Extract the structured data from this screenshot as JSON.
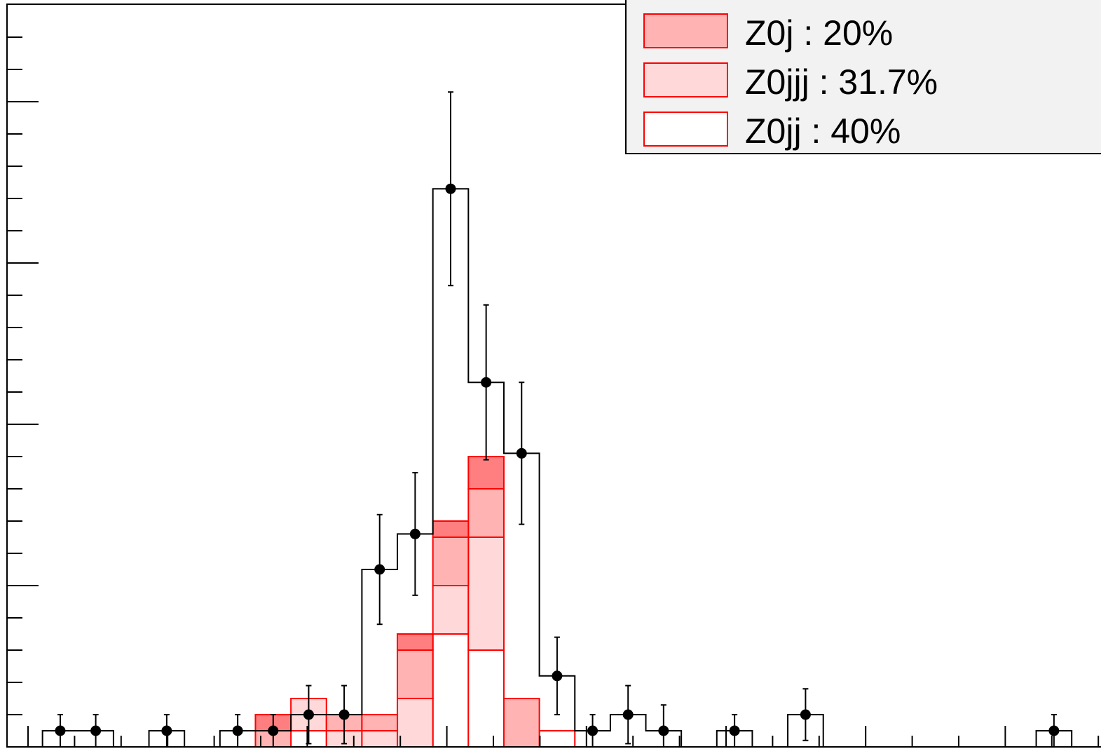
{
  "chart_data": {
    "type": "bar",
    "title": "",
    "xlabel": "",
    "ylabel": "",
    "bin_edges": [
      0,
      1,
      2,
      3,
      4,
      5,
      6,
      7,
      8,
      9,
      10,
      11,
      12,
      13,
      14,
      15,
      16,
      17,
      18,
      19,
      20,
      21,
      22,
      23,
      24,
      25,
      26,
      27,
      28,
      29,
      30,
      31
    ],
    "xlim": [
      0,
      31
    ],
    "ylim": [
      0,
      23
    ],
    "stacked": true,
    "series": [
      {
        "name": "Z0jj : 40%",
        "style": "hollow",
        "values": [
          0,
          0,
          0,
          0,
          0,
          0,
          0,
          0,
          0.5,
          0,
          0,
          0,
          3.5,
          3,
          0,
          0.5,
          0,
          0,
          0,
          0,
          0,
          0,
          0,
          0,
          0,
          0,
          0,
          0,
          0,
          0,
          0
        ]
      },
      {
        "name": "Z0jjj : 31.7%",
        "style": "light-fill",
        "values": [
          0,
          0,
          0,
          0,
          0,
          0,
          0,
          0,
          1,
          0.5,
          0.5,
          1.5,
          1.5,
          3.5,
          0,
          0,
          0,
          0,
          0,
          0,
          0,
          0,
          0,
          0,
          0,
          0,
          0,
          0,
          0,
          0,
          0
        ]
      },
      {
        "name": "Z0j : 20%",
        "style": "medium-fill",
        "values": [
          0,
          0,
          0,
          0,
          0,
          0,
          0,
          0.5,
          0,
          0.5,
          0.5,
          1.5,
          1.5,
          1.5,
          1.5,
          0,
          0,
          0,
          0,
          0,
          0,
          0,
          0,
          0,
          0,
          0,
          0,
          0,
          0,
          0,
          0
        ]
      },
      {
        "name": "",
        "style": "dark-fill",
        "values": [
          0,
          0,
          0,
          0,
          0,
          0,
          0,
          0.5,
          0,
          0,
          0,
          0.5,
          0.5,
          1,
          0,
          0,
          0,
          0,
          0,
          0,
          0,
          0,
          0,
          0,
          0,
          0,
          0,
          0,
          0,
          0,
          0
        ]
      }
    ],
    "data_points": {
      "x": [
        0.5,
        1.5,
        2.5,
        3.5,
        4.5,
        5.5,
        6.5,
        7.5,
        8.5,
        9.5,
        10.5,
        11.5,
        12.5,
        13.5,
        14.5,
        15.5,
        16.5,
        17.5,
        18.5,
        19.5,
        20.5,
        21.5,
        22.5,
        23.5,
        24.5,
        25.5,
        26.5,
        27.5,
        28.5,
        29.5,
        30.5
      ],
      "y": [
        0,
        0.5,
        0.5,
        0,
        0.5,
        0,
        0.5,
        0.5,
        1,
        1,
        5.5,
        6.6,
        17.3,
        11.3,
        9.1,
        2.2,
        0.5,
        1,
        0.5,
        0,
        0.5,
        0,
        1,
        0,
        0,
        0,
        0,
        0,
        0,
        0.5,
        0
      ],
      "yerr": [
        0,
        0.5,
        0.5,
        0,
        0.5,
        0,
        0.5,
        0.5,
        0.9,
        0.9,
        1.7,
        1.9,
        3.0,
        2.4,
        2.2,
        1.2,
        0.5,
        0.9,
        0.8,
        0,
        0.5,
        0,
        0.8,
        0,
        0,
        0,
        0,
        0,
        0,
        0.5,
        0
      ]
    },
    "legend": {
      "position": "top-right",
      "entries": [
        {
          "label": "Z0j : 20%",
          "color": "#ffb3b3"
        },
        {
          "label": "Z0jjj : 31.7%",
          "color": "#ffd9da"
        },
        {
          "label": "Z0jj : 40%",
          "color": "#ffffff"
        }
      ]
    },
    "colors": {
      "dark": "#ff7f80",
      "medium": "#ffb3b3",
      "light": "#ffd9da",
      "line_red": "#ff0000",
      "line_black": "#000000",
      "legend_bg": "#f2f2f2"
    }
  }
}
